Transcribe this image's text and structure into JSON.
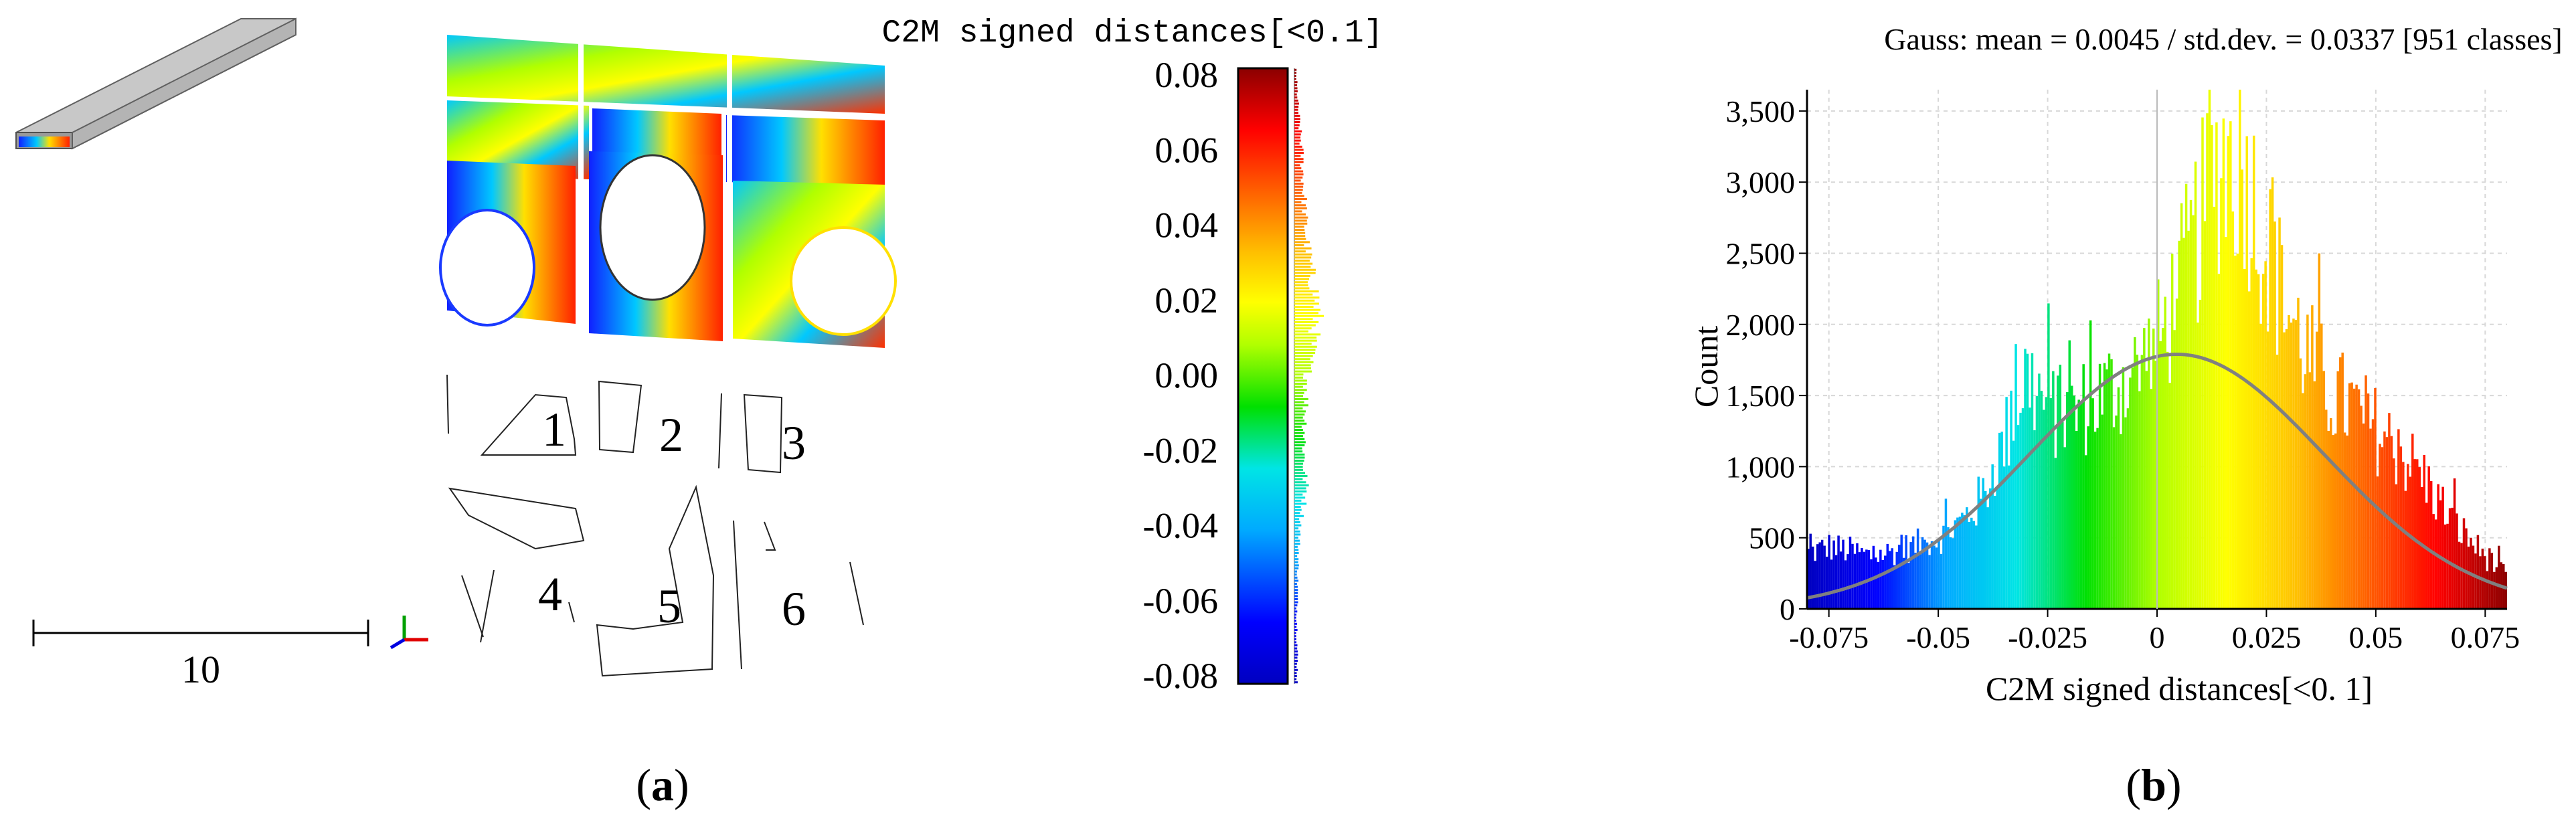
{
  "panel_a": {
    "label_open": "(",
    "label_letter": "a",
    "label_close": ")",
    "scale_bar_value": "10",
    "colorbar_title": "C2M signed distances[<0.1]",
    "colorbar_ticks": [
      "0.08",
      "0.06",
      "0.04",
      "0.02",
      "0.00",
      "-0.02",
      "-0.04",
      "-0.06",
      "-0.08"
    ],
    "colorbar_colors": [
      "#0000c0",
      "#0000ff",
      "#00aaff",
      "#00e5e5",
      "#00e000",
      "#b0ff00",
      "#ffff00",
      "#ffc000",
      "#ff6000",
      "#ff0000",
      "#8b0000"
    ],
    "region_labels": [
      "1",
      "2",
      "3",
      "4",
      "5",
      "6"
    ],
    "axis_triad_icon": "xyz-axes-icon"
  },
  "panel_b": {
    "label_open": "(",
    "label_letter": "b",
    "label_close": ")"
  },
  "chart_data": {
    "type": "bar",
    "title": "Gauss: mean = 0.0045 / std.dev. = 0.0337 [951 classes]",
    "xlabel": "C2M signed distances[<0. 1]",
    "ylabel": "Count",
    "xlim": [
      -0.08,
      0.08
    ],
    "ylim": [
      0,
      3650
    ],
    "xticks": [
      -0.075,
      -0.05,
      -0.025,
      0,
      0.025,
      0.05,
      0.075
    ],
    "xtick_labels": [
      "-0.075",
      "-0.05",
      "-0.025",
      "0",
      "0.025",
      "0.05",
      "0.075"
    ],
    "yticks": [
      0,
      500,
      1000,
      1500,
      2000,
      2500,
      3000,
      3500
    ],
    "ytick_labels": [
      "0",
      "500",
      "1,000",
      "1,500",
      "2,000",
      "2,500",
      "3,000",
      "3,500"
    ],
    "grid": true,
    "gauss": {
      "mean": 0.0045,
      "std": 0.0337,
      "classes": 951,
      "peak": 1790
    },
    "histogram_envelope": {
      "x": [
        -0.08,
        -0.075,
        -0.07,
        -0.065,
        -0.06,
        -0.055,
        -0.05,
        -0.045,
        -0.04,
        -0.035,
        -0.03,
        -0.025,
        -0.02,
        -0.015,
        -0.01,
        -0.005,
        0,
        0.005,
        0.01,
        0.015,
        0.02,
        0.025,
        0.03,
        0.035,
        0.04,
        0.045,
        0.05,
        0.055,
        0.06,
        0.065,
        0.07,
        0.075,
        0.08
      ],
      "counts": [
        400,
        450,
        420,
        380,
        420,
        460,
        520,
        620,
        800,
        1200,
        1700,
        1450,
        1400,
        1500,
        1600,
        1700,
        1900,
        2300,
        2800,
        3300,
        3200,
        2600,
        2150,
        1800,
        1550,
        1450,
        1300,
        1150,
        1000,
        750,
        550,
        380,
        240
      ]
    },
    "colormap": [
      "#0000c0",
      "#0000ff",
      "#00aaff",
      "#00e5e5",
      "#00e000",
      "#b0ff00",
      "#ffff00",
      "#ffc000",
      "#ff6000",
      "#ff0000",
      "#8b0000"
    ],
    "gauss_color": "#808080"
  }
}
